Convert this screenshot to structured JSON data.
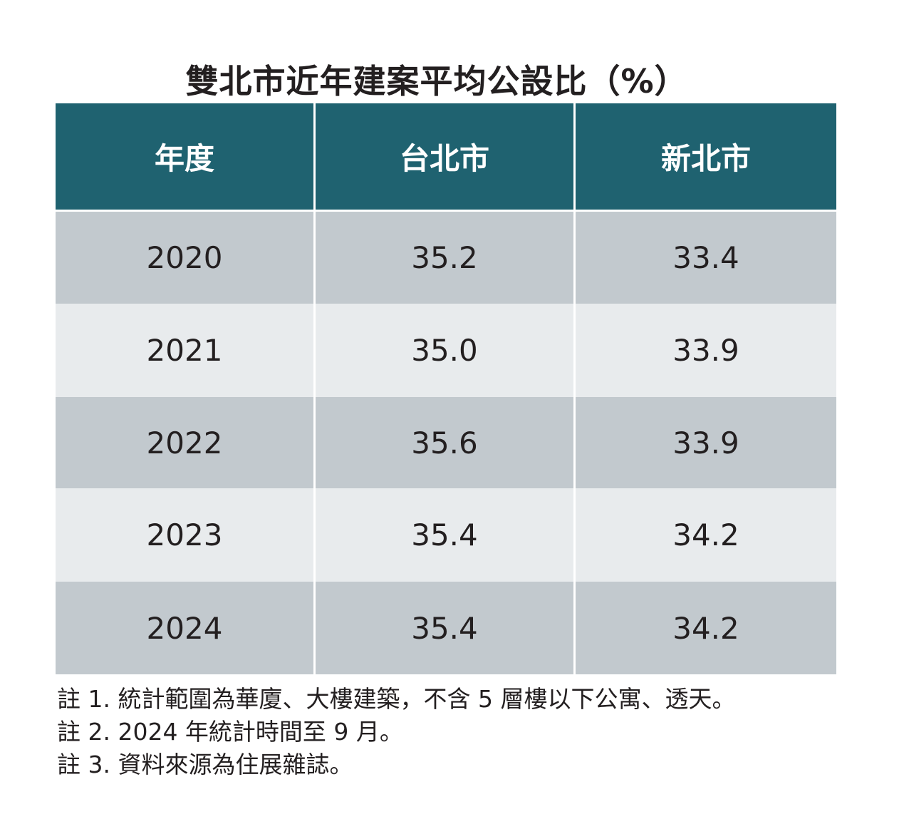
{
  "chart_data": {
    "type": "table",
    "title": "雙北市近年建案平均公設比（%）",
    "columns": [
      "年度",
      "台北市",
      "新北市"
    ],
    "rows": [
      [
        "2020",
        "35.2",
        "33.4"
      ],
      [
        "2021",
        "35.0",
        "33.9"
      ],
      [
        "2022",
        "35.6",
        "33.9"
      ],
      [
        "2023",
        "35.4",
        "34.2"
      ],
      [
        "2024",
        "35.4",
        "34.2"
      ]
    ],
    "notes": [
      "註 1. 統計範圍為華廈、大樓建築，不含 5 層樓以下公寓、透天。",
      "註 2. 2024 年統計時間至 9 月。",
      "註 3. 資料來源為住展雜誌。"
    ]
  },
  "colors": {
    "header_bg": "#1f6270",
    "row_dark": "#c2c9ce",
    "row_light": "#e8ebed"
  }
}
